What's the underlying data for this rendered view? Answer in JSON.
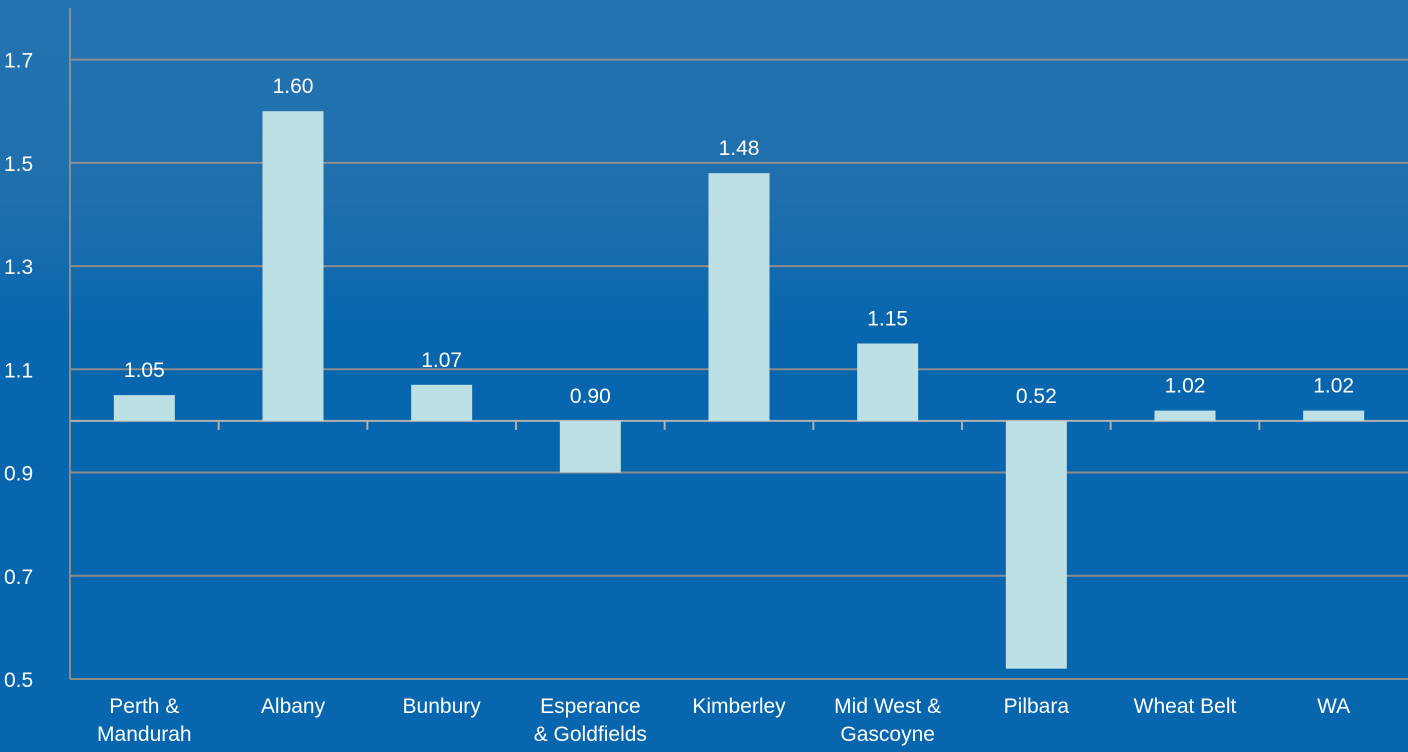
{
  "chart_data": {
    "type": "bar",
    "categories": [
      [
        "Perth &",
        "Mandurah"
      ],
      [
        "Albany"
      ],
      [
        "Bunbury"
      ],
      [
        "Esperance",
        "& Goldfields"
      ],
      [
        "Kimberley"
      ],
      [
        "Mid West &",
        "Gascoyne"
      ],
      [
        "Pilbara"
      ],
      [
        "Wheat Belt"
      ],
      [
        "WA"
      ]
    ],
    "values": [
      1.05,
      1.6,
      1.07,
      0.9,
      1.48,
      1.15,
      0.52,
      1.02,
      1.02
    ],
    "data_labels": [
      "1.05",
      "1.60",
      "1.07",
      "0.90",
      "1.48",
      "1.15",
      "0.52",
      "1.02",
      "1.02"
    ],
    "baseline": 1.0,
    "ylim": [
      0.5,
      1.8
    ],
    "yticks": [
      0.5,
      0.7,
      0.9,
      1.1,
      1.3,
      1.5,
      1.7
    ],
    "ytick_labels": [
      "0.5",
      "0.7",
      "0.9",
      "1.1",
      "1.3",
      "1.5",
      "1.7"
    ],
    "grid": true,
    "title": "",
    "xlabel": "",
    "ylabel": "",
    "colors": {
      "background": "#0766ad",
      "bar": "#bde0e4",
      "grid": "#8c8c8c",
      "axis": "#8c8c8c",
      "text": "#ffffff"
    }
  }
}
